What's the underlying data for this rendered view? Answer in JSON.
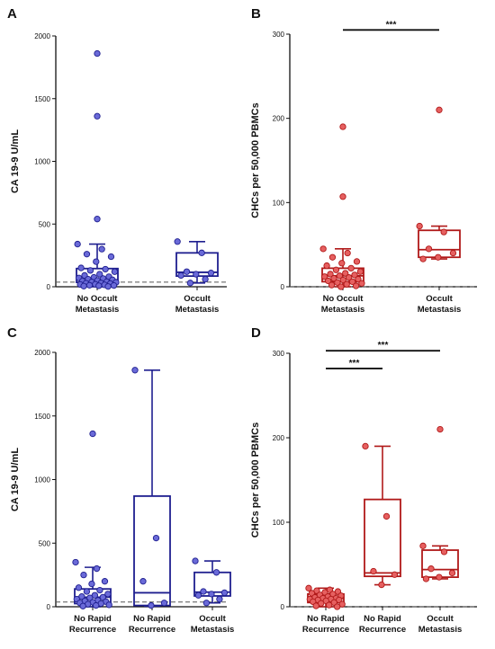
{
  "colors": {
    "blue": "#1f1f8f",
    "blue_fill": "#6a6ad8",
    "red": "#b01919",
    "red_fill": "#e66060",
    "axis": "#111111"
  },
  "chart_data": [
    {
      "panel": "A",
      "type": "box",
      "ylabel": "CA 19-9 U/mL",
      "ylim": [
        0,
        2000
      ],
      "yticks": [
        "0",
        "500",
        "1000",
        "1500",
        "2000"
      ],
      "color": "blue",
      "baseline": 37,
      "groups": [
        {
          "label_lines": [
            "No Occult",
            "Metastasis"
          ],
          "box": {
            "whisker_low": 0,
            "q1": 35,
            "median": 55,
            "q3": 145,
            "whisker_high": 340
          },
          "points": [
            1860,
            1360,
            540,
            340,
            300,
            260,
            240,
            200,
            150,
            140,
            130,
            120,
            100,
            90,
            80,
            75,
            70,
            65,
            60,
            55,
            50,
            45,
            40,
            38,
            35,
            30,
            28,
            25,
            20,
            18,
            15,
            12,
            10,
            8,
            5,
            2
          ],
          "outlier_count": 3
        },
        {
          "label_lines": [
            "Occult",
            "Metastasis"
          ],
          "box": {
            "whisker_low": 30,
            "q1": 85,
            "median": 115,
            "q3": 270,
            "whisker_high": 360
          },
          "points": [
            360,
            270,
            120,
            110,
            100,
            90,
            60,
            30
          ],
          "outlier_count": 0
        }
      ],
      "significance": []
    },
    {
      "panel": "B",
      "type": "box",
      "ylabel": "CHCs per 50,000 PBMCs",
      "ylim": [
        0,
        300
      ],
      "yticks": [
        "0",
        "100",
        "200",
        "300"
      ],
      "color": "red",
      "baseline": 0,
      "groups": [
        {
          "label_lines": [
            "No Occult",
            "Metastasis"
          ],
          "box": {
            "whisker_low": 0,
            "q1": 6,
            "median": 13,
            "q3": 22,
            "whisker_high": 45
          },
          "points": [
            190,
            107,
            45,
            40,
            35,
            30,
            28,
            25,
            22,
            20,
            18,
            16,
            15,
            14,
            13,
            12,
            11,
            10,
            9,
            8,
            7,
            6,
            5,
            4,
            3,
            2,
            1,
            0
          ],
          "outlier_count": 2
        },
        {
          "label_lines": [
            "Occult",
            "Metastasis"
          ],
          "box": {
            "whisker_low": 33,
            "q1": 35,
            "median": 44,
            "q3": 67,
            "whisker_high": 72
          },
          "points": [
            210,
            72,
            65,
            45,
            40,
            35,
            33
          ],
          "outlier_count": 1
        }
      ],
      "significance": [
        {
          "from": 0,
          "to": 1,
          "y": 305,
          "label": "***"
        }
      ]
    },
    {
      "panel": "C",
      "type": "box",
      "ylabel": "CA 19-9 U/mL",
      "ylim": [
        0,
        2000
      ],
      "yticks": [
        "0",
        "500",
        "1000",
        "1500",
        "2000"
      ],
      "color": "blue",
      "baseline": 37,
      "groups": [
        {
          "label_lines": [
            "No Rapid",
            "Recurrence"
          ],
          "box": {
            "whisker_low": 0,
            "q1": 25,
            "median": 75,
            "q3": 140,
            "whisker_high": 310
          },
          "points": [
            1360,
            350,
            300,
            250,
            200,
            180,
            150,
            130,
            120,
            100,
            90,
            80,
            75,
            70,
            60,
            50,
            45,
            40,
            35,
            30,
            25,
            20,
            15,
            10,
            5
          ],
          "outlier_count": 1
        },
        {
          "label_lines": [
            "No Rapid",
            "Recurrence"
          ],
          "box": {
            "whisker_low": 5,
            "q1": 10,
            "median": 110,
            "q3": 870,
            "whisker_high": 1860
          },
          "points": [
            1860,
            540,
            200,
            30,
            10
          ],
          "outlier_count": 0
        },
        {
          "label_lines": [
            "Occult",
            "Metastasis"
          ],
          "box": {
            "whisker_low": 30,
            "q1": 85,
            "median": 115,
            "q3": 270,
            "whisker_high": 360
          },
          "points": [
            360,
            270,
            120,
            110,
            100,
            90,
            60,
            30
          ],
          "outlier_count": 0
        }
      ],
      "significance": []
    },
    {
      "panel": "D",
      "type": "box",
      "ylabel": "CHCs per 50,000 PBMCs",
      "ylim": [
        0,
        300
      ],
      "yticks": [
        "0",
        "100",
        "200",
        "300"
      ],
      "color": "red",
      "baseline": 0,
      "groups": [
        {
          "label_lines": [
            "No Rapid",
            "Recurrence"
          ],
          "box": {
            "whisker_low": 0,
            "q1": 5,
            "median": 10,
            "q3": 15,
            "whisker_high": 22
          },
          "points": [
            22,
            20,
            19,
            18,
            17,
            16,
            15,
            14,
            13,
            12,
            11,
            10,
            10,
            9,
            9,
            8,
            8,
            7,
            6,
            5,
            4,
            3,
            2,
            1,
            0
          ],
          "outlier_count": 0
        },
        {
          "label_lines": [
            "No Rapid",
            "Recurrence"
          ],
          "box": {
            "whisker_low": 26,
            "q1": 36,
            "median": 40,
            "q3": 127,
            "whisker_high": 190
          },
          "points": [
            190,
            107,
            42,
            38,
            26
          ],
          "outlier_count": 0
        },
        {
          "label_lines": [
            "Occult",
            "Metastasis"
          ],
          "box": {
            "whisker_low": 33,
            "q1": 35,
            "median": 44,
            "q3": 67,
            "whisker_high": 72
          },
          "points": [
            210,
            72,
            65,
            45,
            40,
            35,
            33
          ],
          "outlier_count": 1
        }
      ],
      "significance": [
        {
          "from": 0,
          "to": 1,
          "y": 282,
          "label": "***"
        },
        {
          "from": 0,
          "to": 2,
          "y": 303,
          "label": "***"
        }
      ]
    }
  ]
}
